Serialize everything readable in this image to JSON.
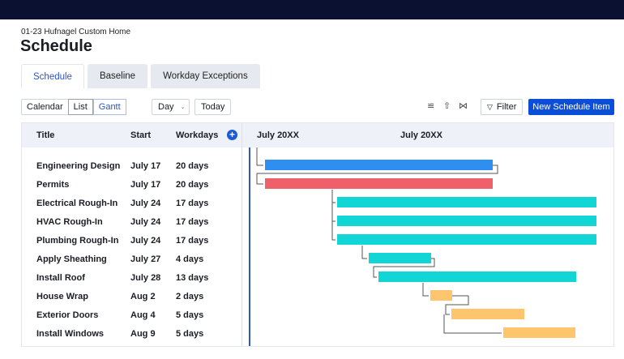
{
  "project": "01-23 Hufnagel Custom Home",
  "page_title": "Schedule",
  "tabs": [
    "Schedule",
    "Baseline",
    "Workday Exceptions"
  ],
  "active_tab": "Schedule",
  "views": {
    "calendar": "Calendar",
    "list": "List",
    "gantt": "Gantt"
  },
  "active_view": "Gantt",
  "zoom_select": "Day",
  "today": "Today",
  "filter": "Filter",
  "new_item": "New Schedule Item",
  "icons": [
    "sliders-icon",
    "export-icon",
    "collapse-icon",
    "filter-icon",
    "plus-icon",
    "chevron-down-icon"
  ],
  "columns": {
    "title": "Title",
    "start": "Start",
    "workdays": "Workdays"
  },
  "timeline_headers": [
    "July 20XX",
    "July 20XX"
  ],
  "colors": {
    "accent": "#0b4fd8",
    "blue": "#2f8ff0",
    "red": "#f0606a",
    "teal": "#12d6d6",
    "orange": "#ffc56e"
  },
  "rows": [
    {
      "title": "Engineering Design",
      "start": "July 17",
      "workdays": "20 days",
      "color": "blue"
    },
    {
      "title": "Permits",
      "start": "July 17",
      "workdays": "20 days",
      "color": "red"
    },
    {
      "title": "Electrical Rough-In",
      "start": "July 24",
      "workdays": "17 days",
      "color": "teal"
    },
    {
      "title": "HVAC Rough-In",
      "start": "July 24",
      "workdays": "17 days",
      "color": "teal"
    },
    {
      "title": "Plumbing Rough-In",
      "start": "July 24",
      "workdays": "17 days",
      "color": "teal"
    },
    {
      "title": "Apply Sheathing",
      "start": "July 27",
      "workdays": "4 days",
      "color": "teal"
    },
    {
      "title": "Install Roof",
      "start": "July 28",
      "workdays": "13 days",
      "color": "teal"
    },
    {
      "title": "House Wrap",
      "start": "Aug 2",
      "workdays": "2 days",
      "color": "orange"
    },
    {
      "title": "Exterior Doors",
      "start": "Aug 4",
      "workdays": "5 days",
      "color": "orange"
    },
    {
      "title": "Install Windows",
      "start": "Aug 9",
      "workdays": "5 days",
      "color": "orange"
    }
  ]
}
